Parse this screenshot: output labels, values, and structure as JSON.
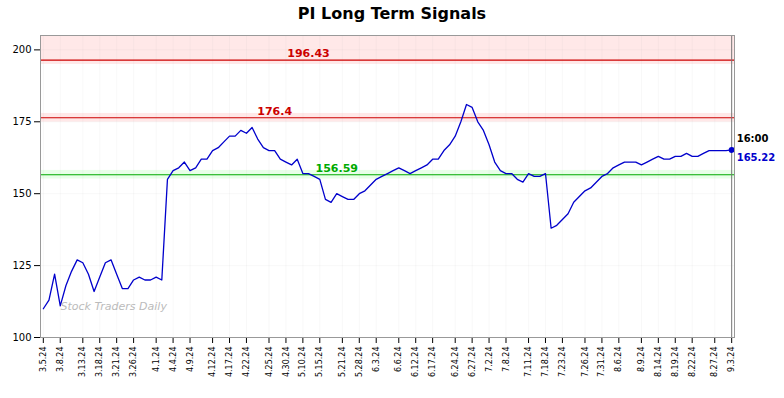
{
  "chart_data": {
    "type": "line",
    "title": "PI Long Term Signals",
    "categories": [
      "3.5.24",
      null,
      null,
      "3.8.24",
      null,
      null,
      null,
      "3.13.24",
      null,
      null,
      "3.18.24",
      null,
      null,
      "3.21.24",
      null,
      null,
      "3.26.24",
      null,
      null,
      null,
      "4.1.24",
      null,
      null,
      "4.4.24",
      null,
      null,
      "4.9.24",
      null,
      null,
      null,
      "4.12.24",
      null,
      null,
      "4.17.24",
      null,
      null,
      "4.22.24",
      null,
      null,
      null,
      "4.25.24",
      null,
      null,
      "4.30.24",
      null,
      null,
      "5.10.24",
      null,
      null,
      "5.15.24",
      null,
      null,
      null,
      "5.21.24",
      null,
      null,
      "5.28.24",
      null,
      null,
      "6.3.24",
      null,
      null,
      null,
      "6.6.24",
      null,
      null,
      "6.12.24",
      null,
      null,
      "6.17.24",
      null,
      null,
      null,
      "6.24.24",
      null,
      null,
      "6.27.24",
      null,
      null,
      "7.2.24",
      null,
      null,
      "7.8.24",
      null,
      null,
      null,
      "7.11.24",
      null,
      null,
      "7.18.24",
      null,
      null,
      "7.23.24",
      null,
      null,
      null,
      "7.26.24",
      null,
      null,
      "7.31.24",
      null,
      null,
      "8.6.24",
      null,
      null,
      null,
      "8.9.24",
      null,
      null,
      "8.14.24",
      null,
      null,
      "8.19.24",
      null,
      null,
      "8.22.24",
      null,
      null,
      null,
      "8.27.24",
      null,
      null,
      "9.3.24"
    ],
    "values": [
      110,
      113,
      122,
      111,
      118,
      123,
      127,
      126,
      122,
      116,
      121,
      126,
      127,
      122,
      117,
      117,
      120,
      121,
      120,
      120,
      121,
      120,
      155,
      158,
      159,
      161,
      158,
      159,
      162,
      162,
      165,
      166,
      168,
      170,
      170,
      172,
      171,
      173,
      169,
      166,
      165,
      165,
      162,
      161,
      160,
      162,
      157,
      157,
      156,
      155,
      148,
      147,
      150,
      149,
      148,
      148,
      150,
      151,
      153,
      155,
      156,
      157,
      158,
      159,
      158,
      157,
      158,
      159,
      160,
      162,
      162,
      165,
      167,
      170,
      175,
      181,
      180,
      175,
      172,
      167,
      161,
      158,
      157,
      157,
      155,
      154,
      157,
      156,
      156,
      157,
      138,
      139,
      141,
      143,
      147,
      149,
      151,
      152,
      154,
      156,
      157,
      159,
      160,
      161,
      161,
      161,
      160,
      161,
      162,
      163,
      162,
      162,
      163,
      163,
      164,
      163,
      163,
      164,
      165,
      165,
      165,
      165,
      165.22
    ],
    "color": "#0000cc",
    "ylim": [
      100,
      205
    ],
    "yticks": [
      100,
      125,
      150,
      175,
      200
    ],
    "grid": true,
    "lines": [
      {
        "value": 196.43,
        "label": "196.43",
        "color": "#cc0000"
      },
      {
        "value": 176.4,
        "label": "176.4",
        "color": "#cc0000"
      },
      {
        "value": 156.59,
        "label": "156.59",
        "color": "#00aa00"
      }
    ],
    "bands": [
      {
        "from": 194.93,
        "to": 205,
        "color": "#ffcccc"
      },
      {
        "from": 174.9,
        "to": 177.9,
        "color": "#ffcccc"
      },
      {
        "from": 155.09,
        "to": 158.09,
        "color": "#ccffcc"
      }
    ],
    "last_point": {
      "marker": "circle",
      "time_label": "16:00",
      "price_label": "165.22",
      "vline_color": "#777777"
    },
    "watermark": {
      "text": "Stock Traders Daily",
      "color": "#bbbbbb"
    }
  }
}
